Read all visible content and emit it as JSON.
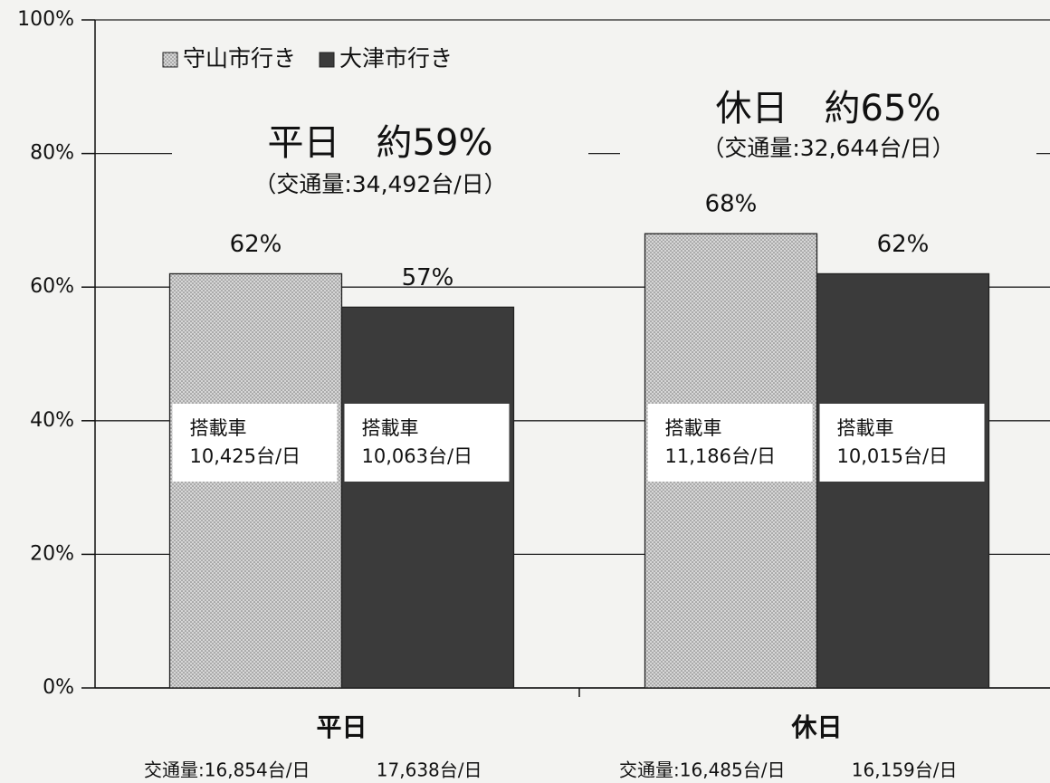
{
  "chart_data": {
    "type": "bar",
    "categories": [
      "平日",
      "休日"
    ],
    "series": [
      {
        "name": "守山市行き",
        "color": "#d6d6d6",
        "pattern": "dots",
        "values": [
          62,
          68
        ],
        "value_labels": [
          "62%",
          "68%"
        ],
        "inner_labels": [
          [
            "搭載車",
            "10,425台/日"
          ],
          [
            "搭載車",
            "11,186台/日"
          ]
        ],
        "traffic_labels": [
          "交通量:16,854台/日",
          "交通量:16,485台/日"
        ]
      },
      {
        "name": "大津市行き",
        "color": "#3b3b3b",
        "values": [
          57,
          62
        ],
        "value_labels": [
          "57%",
          "62%"
        ],
        "inner_labels": [
          [
            "搭載車",
            "10,063台/日"
          ],
          [
            "搭載車",
            "10,015台/日"
          ]
        ],
        "traffic_labels": [
          "17,638台/日",
          "16,159台/日"
        ]
      }
    ],
    "annotations": [
      {
        "title": "平日　約59%",
        "subtitle": "（交通量:34,492台/日）"
      },
      {
        "title": "休日　約65%",
        "subtitle": "（交通量:32,644台/日）"
      }
    ],
    "ylim": [
      0,
      100
    ],
    "yticks": [
      {
        "value": 0,
        "label": "0%"
      },
      {
        "value": 20,
        "label": "20%"
      },
      {
        "value": 40,
        "label": "40%"
      },
      {
        "value": 60,
        "label": "60%"
      },
      {
        "value": 80,
        "label": "80%"
      },
      {
        "value": 100,
        "label": "100%"
      }
    ],
    "grid": true,
    "legend": "top-left"
  }
}
